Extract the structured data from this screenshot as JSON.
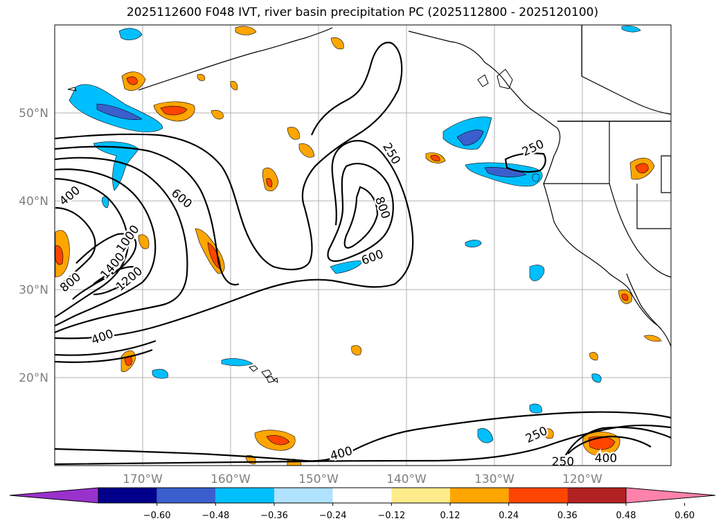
{
  "title": "2025112600 F048 IVT, river basin precipitation PC (2025112800 - 2025120100)",
  "lat_labels": [
    "50°N",
    "40°N",
    "30°N",
    "20°N"
  ],
  "lon_labels": [
    "170°W",
    "160°W",
    "150°W",
    "140°W",
    "130°W",
    "120°W"
  ],
  "ivt_contour_labels": [
    "400",
    "600",
    "1000",
    "1400",
    "1200",
    "800",
    "400",
    "250",
    "800",
    "600",
    "250",
    "250",
    "400",
    "250",
    "400"
  ],
  "colorbar": {
    "colors": [
      "#9932cc",
      "#00008b",
      "#3a5fcd",
      "#00bfff",
      "#b0e2ff",
      "#ffffff",
      "#ffec8b",
      "#ffa500",
      "#ff4500",
      "#b22222",
      "#ff82ab"
    ],
    "ticks": [
      "−0.60",
      "−0.48",
      "−0.36",
      "−0.24",
      "−0.12",
      "0.12",
      "0.24",
      "0.36",
      "0.48",
      "0.60"
    ]
  }
}
